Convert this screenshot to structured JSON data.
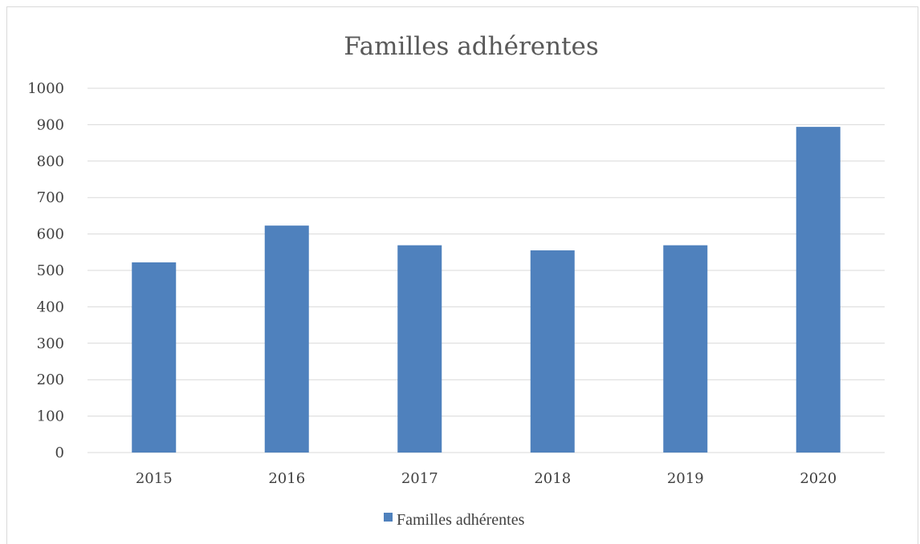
{
  "colors": {
    "bar": "#4f81bd",
    "grid": "#d9d9d9",
    "text": "#404040"
  },
  "chart_data": {
    "type": "bar",
    "title": "Familles adhérentes",
    "xlabel": "",
    "ylabel": "",
    "categories": [
      "2015",
      "2016",
      "2017",
      "2018",
      "2019",
      "2020"
    ],
    "series": [
      {
        "name": "Familles adhérentes",
        "values": [
          522,
          623,
          569,
          555,
          569,
          894
        ]
      }
    ],
    "ylim": [
      0,
      1000
    ],
    "yticks": [
      "0",
      "100",
      "200",
      "300",
      "400",
      "500",
      "600",
      "700",
      "800",
      "900",
      "1000"
    ],
    "grid": true,
    "legend_position": "bottom"
  }
}
